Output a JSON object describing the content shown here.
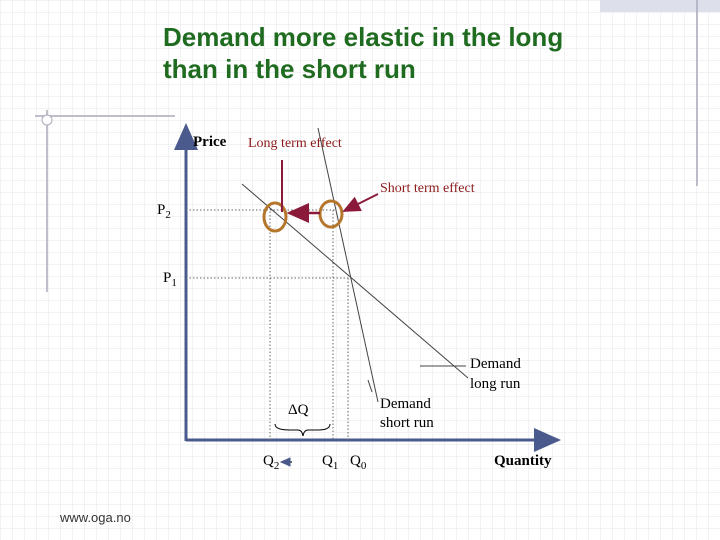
{
  "title": {
    "lines": [
      "Demand more elastic in the long",
      "than in the short run"
    ]
  },
  "labels": {
    "price": "Price",
    "long_term_effect": "Long term effect",
    "short_term_effect": "Short term effect",
    "p2": {
      "base": "P",
      "sub": "2"
    },
    "p1": {
      "base": "P",
      "sub": "1"
    },
    "demand_long_run": [
      "Demand",
      "long run"
    ],
    "demand_short_run": [
      "Demand",
      "short run"
    ],
    "delta_q": "ΔQ",
    "q2": {
      "base": "Q",
      "sub": "2"
    },
    "q1": {
      "base": "Q",
      "sub": "1"
    },
    "q0": {
      "base": "Q",
      "sub": "0"
    },
    "quantity": "Quantity"
  },
  "footer": "www.oga.no"
}
